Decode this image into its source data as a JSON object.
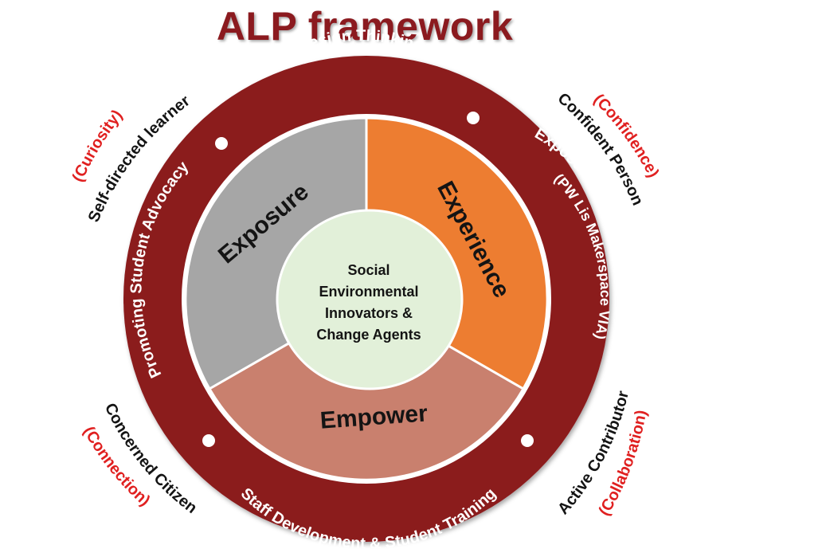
{
  "title": "ALP framework",
  "colors": {
    "title": "#8b1a1f",
    "outer_ring": "#8b1a1f",
    "exposure": "#a6a6a6",
    "experience": "#ed7d31",
    "empower": "#c9806e",
    "center": "#e2f0d9",
    "quality_text": "#e02020"
  },
  "ring_labels": {
    "top": "Design Thinking",
    "right_line1": "Exposure through multiple experiences",
    "right_line2": "(PW  Lis Makerspace  VIA)",
    "left": "Promoting Student Advocacy",
    "bottom": "Staff Development & Student Training"
  },
  "segments": {
    "exposure": "Exposure",
    "experience": "Experience",
    "empower": "Empower"
  },
  "center": {
    "lines": [
      "Social",
      "Environmental",
      "Innovators &",
      "Change Agents"
    ]
  },
  "outer_labels": {
    "top_left": {
      "role": "Self-directed learner",
      "quality": "(Curiosity)"
    },
    "top_right": {
      "role": "Confident Person",
      "quality": "(Confidence)"
    },
    "bottom_left": {
      "role": "Concerned Citizen",
      "quality": "(Connection)"
    },
    "bottom_right": {
      "role": "Active Contributor",
      "quality": "(Collaboration)"
    }
  }
}
